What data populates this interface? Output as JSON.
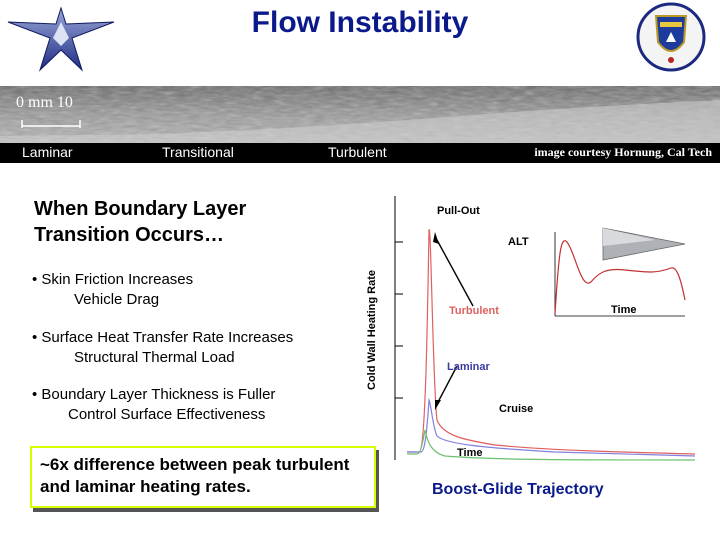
{
  "title": "Flow Instability",
  "flow_image": {
    "scale_label": "0 mm 10",
    "regions": [
      "Laminar",
      "Transitional",
      "Turbulent"
    ],
    "credit": "image courtesy Hornung, Cal Tech"
  },
  "heading": "When Boundary Layer Transition Occurs…",
  "bullets": [
    {
      "main": "• Skin Friction Increases",
      "sub": "Vehicle Drag"
    },
    {
      "main": "• Surface Heat Transfer Rate Increases",
      "sub": "Structural Thermal Load"
    },
    {
      "main": "• Boundary Layer Thickness is Fuller",
      "sub": "Control Surface Effectiveness"
    }
  ],
  "summary": "~6x difference between peak turbulent and laminar heating rates.",
  "chart": {
    "ylabel": "Cold Wall Heating Rate",
    "xlabel": "Time",
    "labels": {
      "pullout": "Pull-Out",
      "turbulent": "Turbulent",
      "laminar": "Laminar",
      "cruise": "Cruise"
    },
    "inset": {
      "ylabel": "ALT",
      "xlabel": "Time"
    },
    "caption": "Boost-Glide Trajectory",
    "colors": {
      "turbulent": "#e06060",
      "laminar": "#8080e0",
      "green": "#6cbf6c"
    }
  }
}
